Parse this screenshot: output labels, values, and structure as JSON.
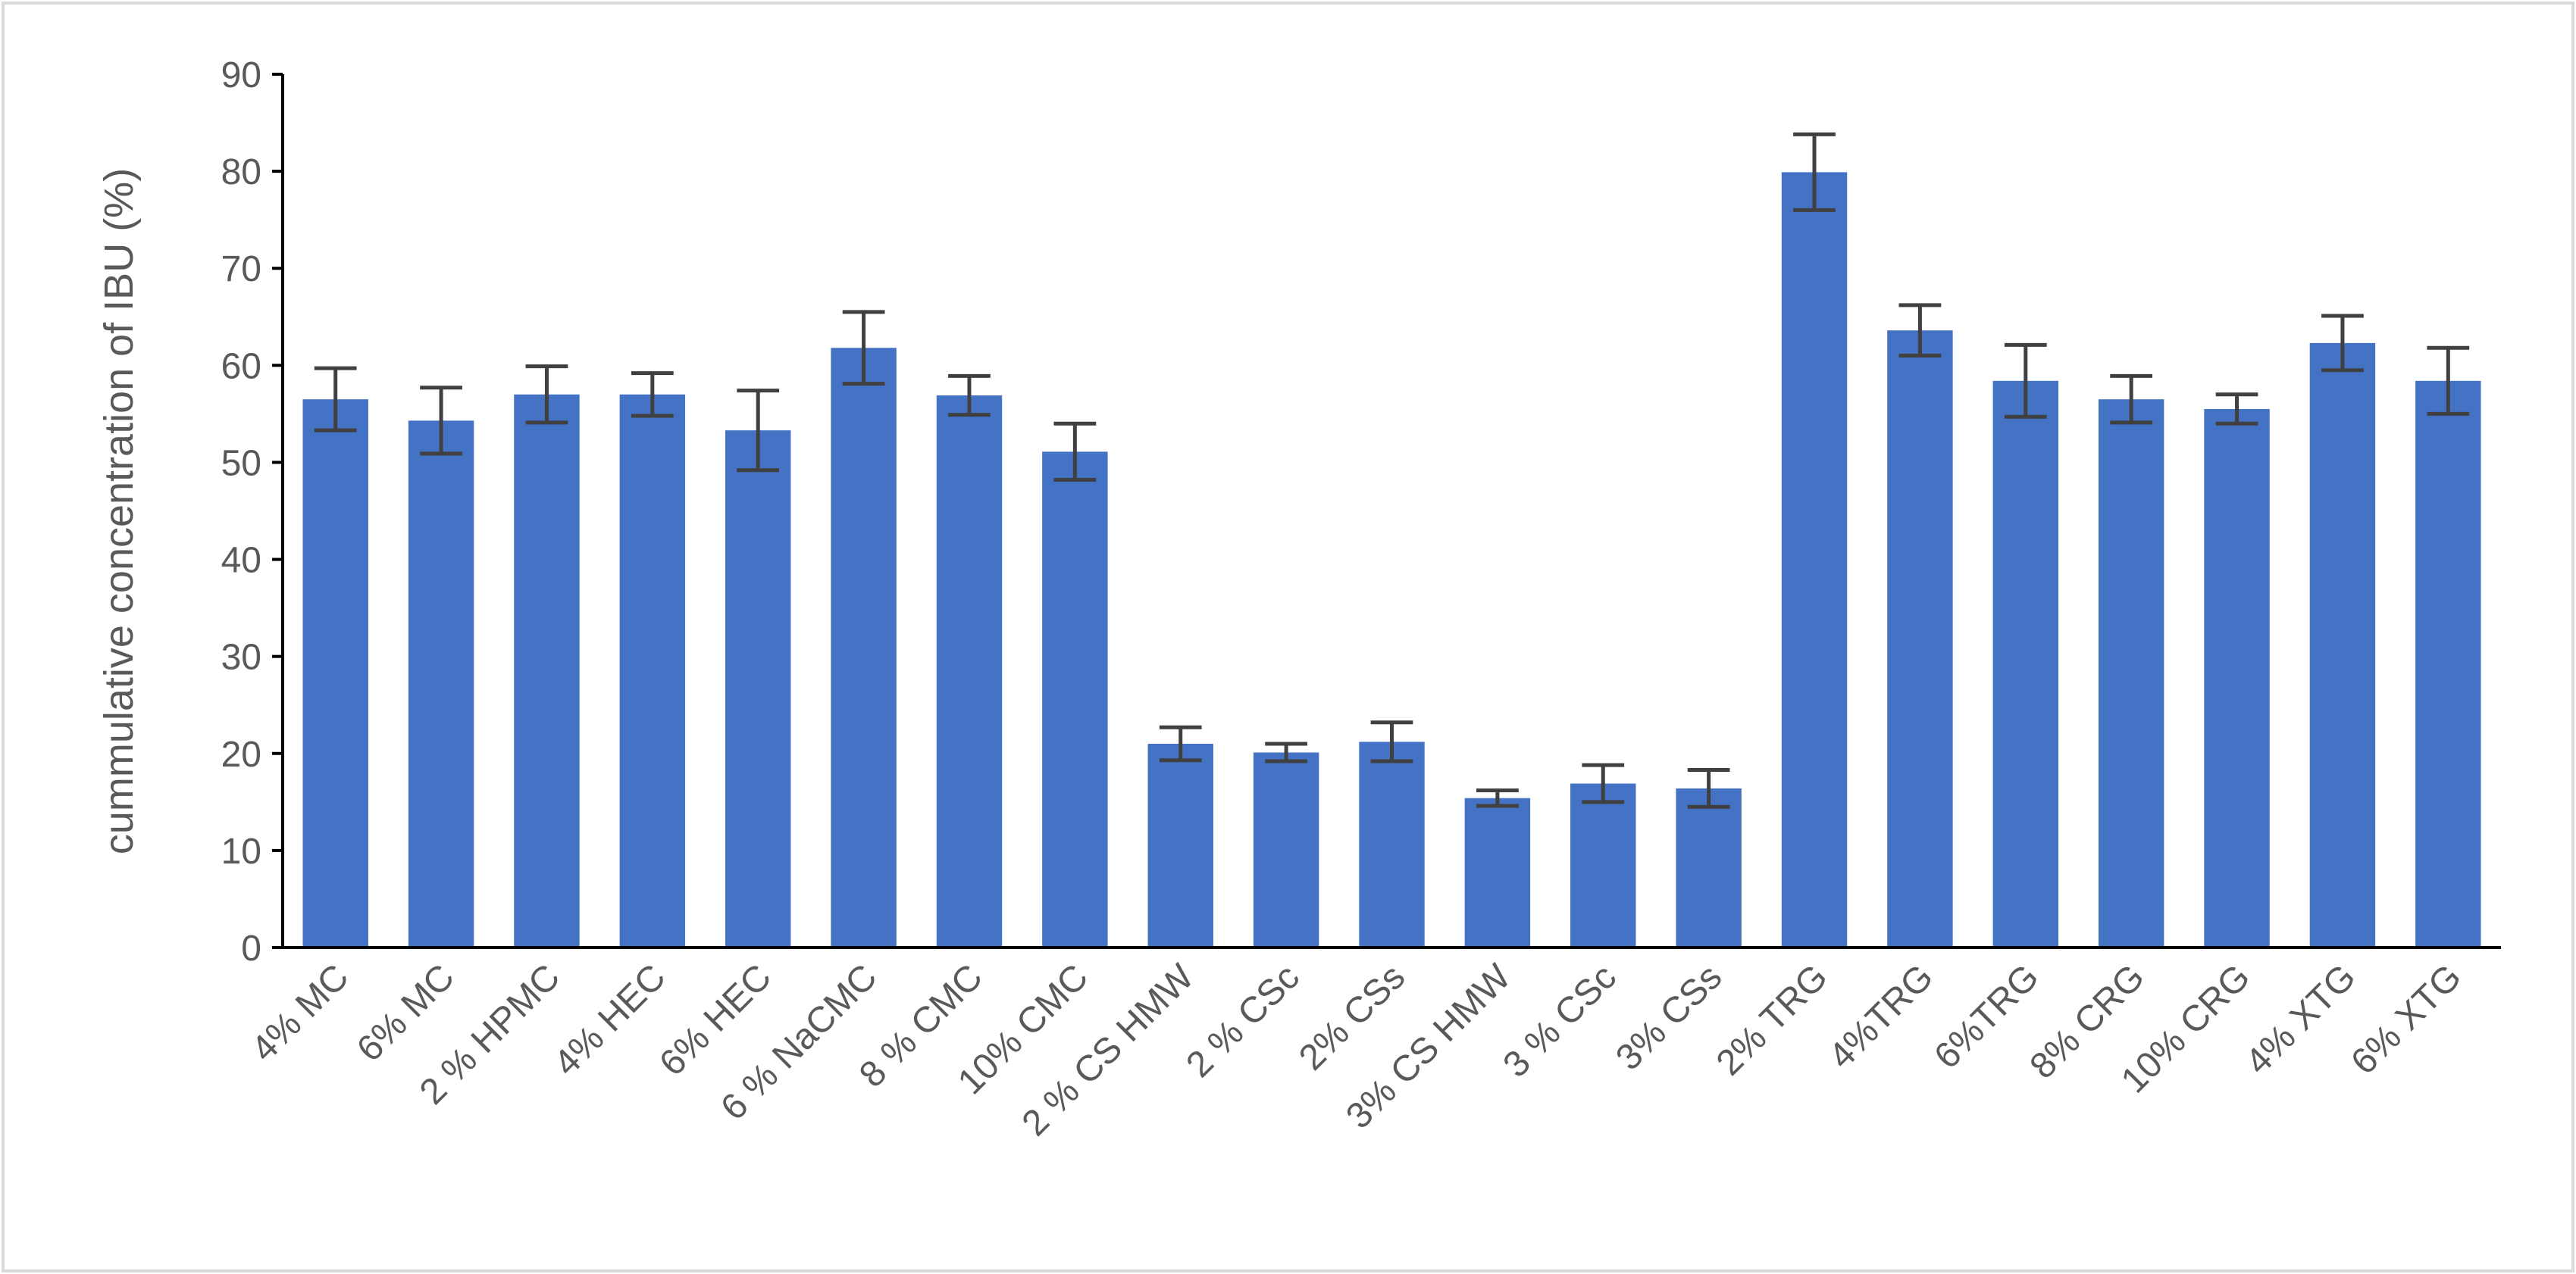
{
  "chart_data": {
    "type": "bar",
    "y_label": "cummulative concentration of IBU (%)",
    "categories": [
      "4% MC",
      "6% MC",
      "2 % HPMC",
      "4% HEC",
      "6% HEC",
      "6 % NaCMC",
      "8 % CMC",
      "10% CMC",
      "2 % CS HMW",
      "2 % CSc",
      "2% CSs",
      "3% CS HMW",
      "3 % CSc",
      "3% CSs",
      "2% TRG",
      "4%TRG",
      "6%TRG",
      "8% CRG",
      "10% CRG",
      "4% XTG",
      "6% XTG"
    ],
    "values": [
      56.5,
      54.3,
      57.0,
      57.0,
      53.3,
      61.8,
      56.9,
      51.1,
      21.0,
      20.1,
      21.2,
      15.4,
      16.9,
      16.4,
      79.9,
      63.6,
      58.4,
      56.5,
      55.5,
      62.3,
      58.4
    ],
    "errors": [
      3.2,
      3.4,
      2.9,
      2.2,
      4.1,
      3.7,
      2.0,
      2.9,
      1.7,
      0.9,
      2.0,
      0.8,
      1.9,
      1.9,
      3.9,
      2.6,
      3.7,
      2.4,
      1.5,
      2.8,
      3.4
    ],
    "color": "#4472c4",
    "error_color": "#404040",
    "ylim": [
      0,
      90
    ],
    "yticks": [
      0,
      10,
      20,
      30,
      40,
      50,
      60,
      70,
      80,
      90
    ]
  }
}
